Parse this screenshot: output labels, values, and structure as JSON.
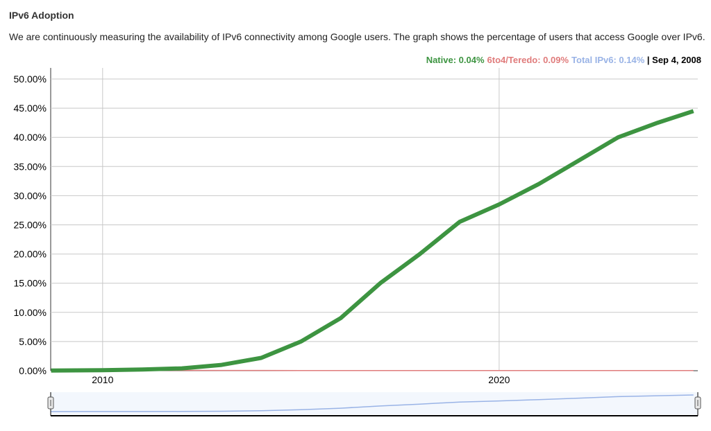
{
  "chart_data": {
    "type": "line",
    "title": "IPv6 Adoption",
    "subtitle": "We are continuously measuring the availability of IPv6 connectivity among Google users. The graph shows the percentage of users that access Google over IPv6.",
    "legend_texts": [
      {
        "text": "Native: 0.04%",
        "color": "#3d9441"
      },
      {
        "text": "6to4/Teredo: 0.09%",
        "color": "#e07b7b"
      },
      {
        "text": "Total IPv6: 0.14%",
        "color": "#99b3e6"
      },
      {
        "text": " | Sep 4, 2008",
        "color": "#000000"
      }
    ],
    "x": [
      2008.7,
      2010,
      2011,
      2012,
      2013,
      2014,
      2015,
      2016,
      2017,
      2018,
      2019,
      2020,
      2021,
      2022,
      2023,
      2024,
      2024.9
    ],
    "series": [
      {
        "name": "Native",
        "color": "#3d9441",
        "values": [
          0.04,
          0.1,
          0.2,
          0.4,
          1.0,
          2.2,
          5.0,
          9.0,
          15.0,
          20.0,
          25.5,
          28.5,
          32.0,
          36.0,
          40.0,
          42.5,
          44.5
        ]
      },
      {
        "name": "6to4/Teredo",
        "color": "#e07b7b",
        "values": [
          0.09,
          0.08,
          0.07,
          0.06,
          0.05,
          0.05,
          0.04,
          0.04,
          0.03,
          0.03,
          0.03,
          0.03,
          0.03,
          0.03,
          0.03,
          0.03,
          0.03
        ]
      }
    ],
    "navigator_color": "#99b3e6",
    "xlim": [
      2008.69,
      2025.01
    ],
    "xticks": [
      2010,
      2020
    ],
    "ylim": [
      0,
      51.9
    ],
    "yticks": [
      {
        "value": 0,
        "label": "0.00%"
      },
      {
        "value": 5,
        "label": "5.00%"
      },
      {
        "value": 10,
        "label": "10.00%"
      },
      {
        "value": 15,
        "label": "15.00%"
      },
      {
        "value": 20,
        "label": "20.00%"
      },
      {
        "value": 25,
        "label": "25.00%"
      },
      {
        "value": 30,
        "label": "30.00%"
      },
      {
        "value": 35,
        "label": "35.00%"
      },
      {
        "value": 40,
        "label": "40.00%"
      },
      {
        "value": 45,
        "label": "45.00%"
      },
      {
        "value": 50,
        "label": "50.00%"
      }
    ],
    "grid": true
  }
}
